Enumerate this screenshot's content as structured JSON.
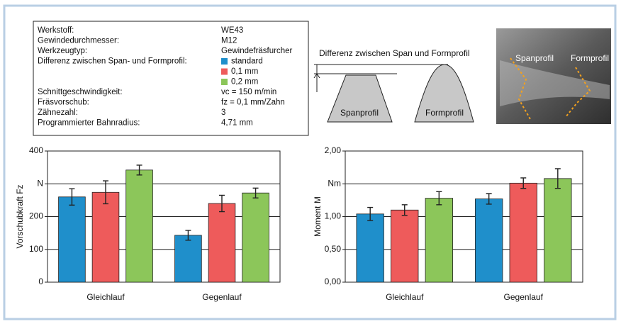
{
  "parameters": {
    "rows": [
      {
        "label": "Werkstoff:",
        "value": "WE43"
      },
      {
        "label": "Gewindedurchmesser:",
        "value": "M12"
      },
      {
        "label": "Werkzeugtyp:",
        "value": "Gewindefräsfurcher"
      },
      {
        "label": "Differenz zwischen Span- und Formprofil:"
      },
      {
        "label": "Schnittgeschwindigkeit:",
        "value": "vc = 150 m/min"
      },
      {
        "label": "Fräsvorschub:",
        "value": "fz = 0,1 mm/Zahn"
      },
      {
        "label": "Zähnezahl:",
        "value": "3"
      },
      {
        "label": "Programmierter Bahnradius:",
        "value": "4,71 mm"
      }
    ]
  },
  "diagram": {
    "caption": "Differenz zwischen Span und Formprofil",
    "left_shape": "Spanprofil",
    "right_shape": "Formprofil",
    "photo_labels": [
      "Spanprofil",
      "Formprofil"
    ]
  },
  "chart_data": [
    {
      "type": "bar",
      "y_label": "Vorschubkraft Fz",
      "categories": [
        "Gleichlauf",
        "Gegenlauf"
      ],
      "series": [
        {
          "name": "standard",
          "color": "#1f8fcb",
          "values": [
            260,
            143
          ],
          "errors": [
            25,
            15
          ]
        },
        {
          "name": "0,1 mm",
          "color": "#ee5b5b",
          "values": [
            274,
            240
          ],
          "errors": [
            35,
            25
          ]
        },
        {
          "name": "0,2 mm",
          "color": "#8cc65a",
          "values": [
            342,
            272
          ],
          "errors": [
            15,
            15
          ]
        }
      ],
      "ylim": [
        0,
        400
      ],
      "yticks": [
        0,
        100,
        200,
        {
          "value": 300,
          "label": "N"
        },
        400
      ],
      "grid": true
    },
    {
      "type": "bar",
      "y_label": "Moment M",
      "categories": [
        "Gleichlauf",
        "Gegenlauf"
      ],
      "series": [
        {
          "name": "standard",
          "color": "#1f8fcb",
          "values": [
            1.04,
            1.27
          ],
          "errors": [
            0.1,
            0.08
          ]
        },
        {
          "name": "0,1 mm",
          "color": "#ee5b5b",
          "values": [
            1.1,
            1.51
          ],
          "errors": [
            0.08,
            0.08
          ]
        },
        {
          "name": "0,2 mm",
          "color": "#8cc65a",
          "values": [
            1.28,
            1.58
          ],
          "errors": [
            0.1,
            0.15
          ]
        }
      ],
      "ylim": [
        0,
        2
      ],
      "yticks": [
        {
          "value": 0,
          "label": "0,00"
        },
        {
          "value": 0.5,
          "label": "0,50"
        },
        {
          "value": 1,
          "label": "1,00"
        },
        {
          "value": 1.5,
          "label": "Nm"
        },
        {
          "value": 2,
          "label": "2,00"
        }
      ],
      "grid": true
    }
  ]
}
